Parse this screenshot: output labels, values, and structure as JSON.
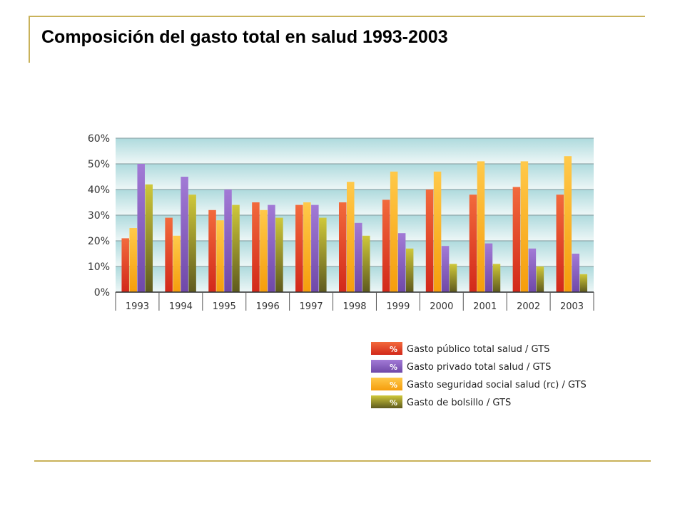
{
  "slide": {
    "title": "Composición del gasto total en salud 1993-2003"
  },
  "chart_data": {
    "type": "bar",
    "title": "",
    "xlabel": "",
    "ylabel": "",
    "ylim": [
      0,
      60
    ],
    "yticks": [
      0,
      10,
      20,
      30,
      40,
      50,
      60
    ],
    "ytick_labels": [
      "0%",
      "10%",
      "20%",
      "30%",
      "40%",
      "50%",
      "60%"
    ],
    "grid": true,
    "legend_position": "bottom-right",
    "legend_marker": "%",
    "categories": [
      "1993",
      "1994",
      "1995",
      "1996",
      "1997",
      "1998",
      "1999",
      "2000",
      "2001",
      "2002",
      "2003"
    ],
    "series": [
      {
        "name": "Gasto público total salud / GTS",
        "color": "#e8482a",
        "values": [
          21,
          29,
          32,
          35,
          34,
          35,
          36,
          40,
          38,
          41,
          38
        ]
      },
      {
        "name": "Gasto seguridad social salud (rc) / GTS",
        "color": "#fdb515",
        "values": [
          25,
          22,
          28,
          32,
          35,
          43,
          47,
          47,
          51,
          51,
          53
        ]
      },
      {
        "name": "Gasto privado total salud / GTS",
        "color": "#8d5fc4",
        "values": [
          50,
          45,
          40,
          34,
          34,
          27,
          23,
          18,
          19,
          17,
          15
        ]
      },
      {
        "name": "Gasto de bolsillo / GTS",
        "color": "#a8a42a",
        "values": [
          42,
          38,
          34,
          29,
          29,
          22,
          17,
          11,
          11,
          10,
          7
        ]
      }
    ],
    "legend_order": [
      0,
      2,
      1,
      3
    ]
  }
}
